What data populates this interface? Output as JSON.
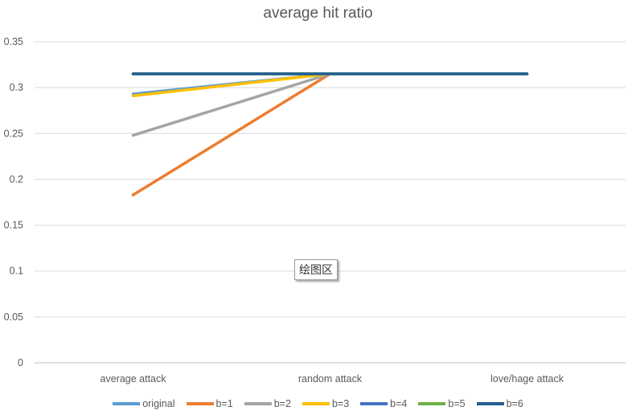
{
  "chart_data": {
    "type": "line",
    "title": "average hit ratio",
    "categories": [
      "average attack",
      "random attack",
      "love/hage attack"
    ],
    "ylim": [
      0,
      0.35
    ],
    "yticks": [
      "0",
      "0.05",
      "0.1",
      "0.15",
      "0.2",
      "0.25",
      "0.3",
      "0.35"
    ],
    "grid": true,
    "legend_position": "bottom",
    "series": [
      {
        "name": "original",
        "color": "#5B9BD5",
        "values": [
          0.293,
          0.315,
          null
        ]
      },
      {
        "name": "b=1",
        "color": "#ED7D31",
        "values": [
          0.183,
          0.315,
          null
        ]
      },
      {
        "name": "b=2",
        "color": "#A5A5A5",
        "values": [
          0.248,
          0.315,
          null
        ]
      },
      {
        "name": "b=3",
        "color": "#FFC000",
        "values": [
          0.291,
          0.315,
          null
        ]
      },
      {
        "name": "b=4",
        "color": "#4472C4",
        "values": [
          0.315,
          0.315,
          0.315
        ]
      },
      {
        "name": "b=5",
        "color": "#70AD47",
        "values": [
          0.315,
          0.315,
          0.315
        ]
      },
      {
        "name": "b=6",
        "color": "#255E91",
        "values": [
          0.315,
          0.315,
          0.315
        ]
      }
    ]
  },
  "tooltip": "绘图区"
}
